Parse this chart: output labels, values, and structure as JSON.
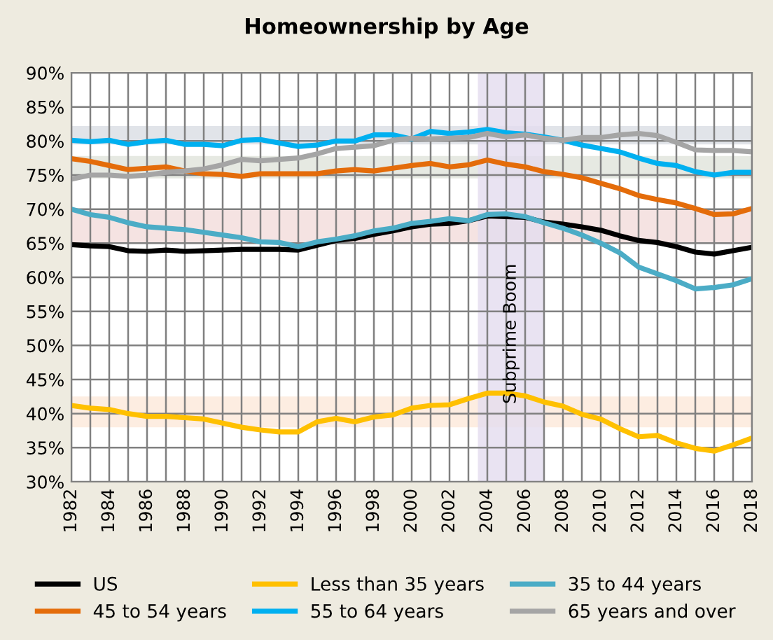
{
  "chart_data": {
    "type": "line",
    "title": "Homeownership by Age",
    "x": [
      1982,
      1983,
      1984,
      1985,
      1986,
      1987,
      1988,
      1989,
      1990,
      1991,
      1992,
      1993,
      1994,
      1995,
      1996,
      1997,
      1998,
      1999,
      2000,
      2001,
      2002,
      2003,
      2004,
      2005,
      2006,
      2007,
      2008,
      2009,
      2010,
      2011,
      2012,
      2013,
      2014,
      2015,
      2016,
      2017,
      2018
    ],
    "series": [
      {
        "name": "US",
        "color": "#000000",
        "values": [
          64.8,
          64.6,
          64.5,
          63.9,
          63.8,
          64.0,
          63.8,
          63.9,
          64.0,
          64.1,
          64.1,
          64.1,
          64.0,
          64.7,
          65.4,
          65.7,
          66.3,
          66.8,
          67.4,
          67.8,
          67.9,
          68.3,
          69.0,
          68.9,
          68.8,
          68.1,
          67.8,
          67.4,
          66.9,
          66.1,
          65.4,
          65.1,
          64.5,
          63.7,
          63.4,
          63.9,
          64.4
        ]
      },
      {
        "name": "Less than 35 years",
        "color": "#ffc000",
        "values": [
          41.2,
          40.8,
          40.6,
          40.0,
          39.6,
          39.6,
          39.4,
          39.2,
          38.6,
          38.0,
          37.6,
          37.3,
          37.3,
          38.8,
          39.3,
          38.8,
          39.5,
          39.8,
          40.8,
          41.2,
          41.3,
          42.2,
          43.0,
          43.0,
          42.6,
          41.7,
          41.1,
          39.9,
          39.2,
          37.8,
          36.6,
          36.8,
          35.7,
          34.9,
          34.5,
          35.4,
          36.4
        ]
      },
      {
        "name": "35 to 44 years",
        "color": "#4bacc6",
        "values": [
          70.0,
          69.2,
          68.8,
          68.0,
          67.4,
          67.2,
          67.0,
          66.6,
          66.2,
          65.8,
          65.2,
          65.1,
          64.5,
          65.2,
          65.6,
          66.1,
          66.8,
          67.2,
          67.9,
          68.2,
          68.6,
          68.3,
          69.2,
          69.3,
          68.9,
          68.0,
          67.2,
          66.2,
          65.0,
          63.6,
          61.5,
          60.5,
          59.5,
          58.3,
          58.5,
          58.9,
          59.8
        ]
      },
      {
        "name": "45 to 54 years",
        "color": "#e46c0a",
        "values": [
          77.4,
          77.0,
          76.4,
          75.8,
          76.0,
          76.2,
          75.6,
          75.2,
          75.1,
          74.8,
          75.2,
          75.2,
          75.2,
          75.2,
          75.6,
          75.8,
          75.6,
          76.0,
          76.4,
          76.7,
          76.2,
          76.5,
          77.2,
          76.6,
          76.2,
          75.5,
          75.1,
          74.6,
          73.8,
          73.0,
          72.0,
          71.4,
          70.9,
          70.1,
          69.2,
          69.3,
          70.1
        ]
      },
      {
        "name": "55 to 64 years",
        "color": "#00b0f0",
        "values": [
          80.1,
          79.9,
          80.1,
          79.5,
          79.9,
          80.1,
          79.5,
          79.5,
          79.3,
          80.1,
          80.2,
          79.7,
          79.2,
          79.4,
          80.0,
          80.0,
          80.9,
          80.9,
          80.3,
          81.4,
          81.1,
          81.3,
          81.7,
          81.2,
          81.0,
          80.6,
          80.1,
          79.4,
          78.9,
          78.4,
          77.5,
          76.7,
          76.4,
          75.5,
          75.0,
          75.4,
          75.4
        ]
      },
      {
        "name": "65 years and over",
        "color": "#a5a5a5",
        "values": [
          74.4,
          75.0,
          75.0,
          74.8,
          75.0,
          75.4,
          75.6,
          75.9,
          76.5,
          77.3,
          77.1,
          77.3,
          77.5,
          78.1,
          78.9,
          79.1,
          79.3,
          80.1,
          80.4,
          80.3,
          80.4,
          80.5,
          81.1,
          80.6,
          80.9,
          80.4,
          80.1,
          80.5,
          80.5,
          80.9,
          81.1,
          80.8,
          79.8,
          78.7,
          78.6,
          78.6,
          78.4
        ]
      }
    ],
    "bands": [
      {
        "axis": "y",
        "from": 79.5,
        "to": 82.2,
        "color": "#d9dde3"
      },
      {
        "axis": "y",
        "from": 74.5,
        "to": 77.8,
        "color": "#e0e3db"
      },
      {
        "axis": "y",
        "from": 65,
        "to": 70,
        "color": "#f2dcdb"
      },
      {
        "axis": "y",
        "from": 38,
        "to": 42.5,
        "color": "#fde9d9"
      },
      {
        "axis": "x",
        "from": 2003.5,
        "to": 2007,
        "color": "#e4dcef",
        "label": "Subprime Boom"
      }
    ],
    "xlim": [
      1982,
      2018
    ],
    "xticks": [
      1982,
      1984,
      1986,
      1988,
      1990,
      1992,
      1994,
      1996,
      1998,
      2000,
      2002,
      2004,
      2006,
      2008,
      2010,
      2012,
      2014,
      2016,
      2018
    ],
    "ylim": [
      30,
      90
    ],
    "yticks": [
      {
        "value": 30,
        "label": "30%"
      },
      {
        "value": 35,
        "label": "35%"
      },
      {
        "value": 40,
        "label": "40%"
      },
      {
        "value": 45,
        "label": "45%"
      },
      {
        "value": 50,
        "label": "50%"
      },
      {
        "value": 55,
        "label": "55%"
      },
      {
        "value": 60,
        "label": "60%"
      },
      {
        "value": 65,
        "label": "65%"
      },
      {
        "value": 70,
        "label": "70%"
      },
      {
        "value": 75,
        "label": "75%"
      },
      {
        "value": 80,
        "label": "80%"
      },
      {
        "value": 85,
        "label": "85%"
      },
      {
        "value": 90,
        "label": "90%"
      }
    ],
    "grid": true,
    "legend": "bottom",
    "marker": "none",
    "line_style": "solid"
  }
}
